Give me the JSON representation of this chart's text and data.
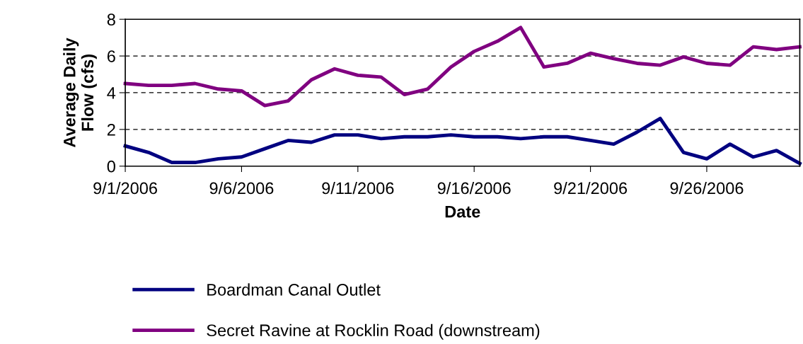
{
  "chart_data": {
    "type": "line",
    "xlabel": "Date",
    "ylabel": "Average Daily\nFlow (cfs)",
    "x": [
      "2006-09-01",
      "2006-09-02",
      "2006-09-03",
      "2006-09-04",
      "2006-09-05",
      "2006-09-06",
      "2006-09-07",
      "2006-09-08",
      "2006-09-09",
      "2006-09-10",
      "2006-09-11",
      "2006-09-12",
      "2006-09-13",
      "2006-09-14",
      "2006-09-15",
      "2006-09-16",
      "2006-09-17",
      "2006-09-18",
      "2006-09-19",
      "2006-09-20",
      "2006-09-21",
      "2006-09-22",
      "2006-09-23",
      "2006-09-24",
      "2006-09-25",
      "2006-09-26",
      "2006-09-27",
      "2006-09-28",
      "2006-09-29",
      "2006-09-30"
    ],
    "series": [
      {
        "name": "Boardman Canal Outlet",
        "color": "#000080",
        "values": [
          1.1,
          0.75,
          0.2,
          0.2,
          0.4,
          0.5,
          0.95,
          1.4,
          1.3,
          1.7,
          1.7,
          1.5,
          1.6,
          1.6,
          1.7,
          1.6,
          1.6,
          1.5,
          1.6,
          1.6,
          1.4,
          1.2,
          1.85,
          2.6,
          0.75,
          0.4,
          1.2,
          0.5,
          0.85,
          0.15
        ]
      },
      {
        "name": "Secret Ravine at Rocklin Road (downstream)",
        "color": "#800080",
        "values": [
          4.5,
          4.4,
          4.4,
          4.5,
          4.2,
          4.1,
          3.3,
          3.55,
          4.7,
          5.3,
          4.95,
          4.85,
          3.9,
          4.2,
          5.4,
          6.25,
          6.8,
          7.55,
          5.4,
          5.6,
          6.15,
          5.85,
          5.6,
          5.5,
          5.95,
          5.6,
          5.5,
          6.5,
          6.35,
          6.5
        ]
      }
    ],
    "xlim": [
      "2006-09-01",
      "2006-09-30"
    ],
    "xticks": [
      {
        "value": "2006-09-01",
        "label": "9/1/2006"
      },
      {
        "value": "2006-09-06",
        "label": "9/6/2006"
      },
      {
        "value": "2006-09-11",
        "label": "9/11/2006"
      },
      {
        "value": "2006-09-16",
        "label": "9/16/2006"
      },
      {
        "value": "2006-09-21",
        "label": "9/21/2006"
      },
      {
        "value": "2006-09-26",
        "label": "9/26/2006"
      }
    ],
    "ylim": [
      0,
      8
    ],
    "yticks": [
      0,
      2,
      4,
      6,
      8
    ],
    "grid": "y",
    "legend": "bottom",
    "marker": "none",
    "line_style": "solid"
  }
}
